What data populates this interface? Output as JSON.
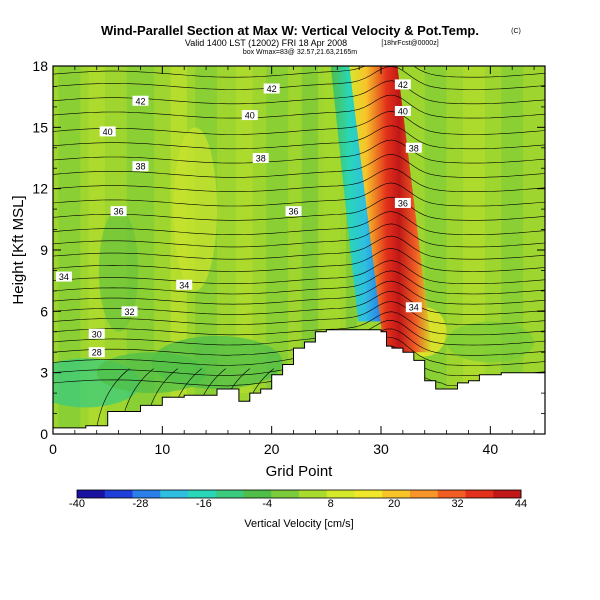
{
  "chart_data": {
    "type": "heatmap",
    "title": "Wind-Parallel Section at Max W: Vertical Velocity & Pot.Temp.",
    "title_suffix": "(C)",
    "subtitle": "Valid 1400 LST (12002) FRI 18 Apr 2008",
    "subtitle_suffix": "[18hrFcst@0000z]",
    "subtitle2": "box Wmax=83@ 32.57,21.63,2165m",
    "xlabel": "Grid Point",
    "ylabel": "Height [Kft MSL]",
    "xlim": [
      0,
      45
    ],
    "ylim": [
      0,
      18
    ],
    "x_ticks": [
      "0",
      "10",
      "20",
      "30",
      "40"
    ],
    "y_ticks": [
      "0",
      "3",
      "6",
      "9",
      "12",
      "15",
      "18"
    ],
    "colorbar": {
      "label": "Vertical Velocity [cm/s]",
      "range": [
        -40,
        44
      ],
      "tick_labels": [
        "-40",
        "-28",
        "-16",
        "-4",
        "8",
        "20",
        "32",
        "44"
      ],
      "colors": [
        "#1a12a0",
        "#1f3fd8",
        "#2a7fe8",
        "#2fbfe0",
        "#2ad6b8",
        "#3acb7e",
        "#4fbf4a",
        "#7acc3a",
        "#a8db2e",
        "#d4e82c",
        "#f2e82a",
        "#f8c42a",
        "#f7952a",
        "#f05e24",
        "#e2301c",
        "#c01818"
      ]
    },
    "features": {
      "terrain_left": [
        [
          0,
          0.3
        ],
        [
          3,
          0.4
        ],
        [
          5,
          1.1
        ],
        [
          8,
          1.4
        ],
        [
          10,
          1.8
        ],
        [
          12,
          1.9
        ],
        [
          15,
          2.2
        ],
        [
          17,
          1.6
        ],
        [
          18,
          2.0
        ],
        [
          19,
          2.2
        ],
        [
          20,
          2.9
        ],
        [
          21,
          3.4
        ],
        [
          22,
          4.2
        ],
        [
          23,
          4.5
        ],
        [
          24,
          5.0
        ],
        [
          25,
          5.1
        ],
        [
          26,
          5.1
        ],
        [
          28,
          5.1
        ],
        [
          29,
          5.1
        ],
        [
          30,
          5.0
        ],
        [
          30.5,
          4.3
        ],
        [
          31,
          4.2
        ],
        [
          32,
          4.0
        ],
        [
          33,
          3.6
        ],
        [
          34,
          2.6
        ],
        [
          35,
          2.2
        ],
        [
          36,
          2.2
        ],
        [
          37,
          2.5
        ],
        [
          38,
          2.6
        ],
        [
          39,
          2.9
        ],
        [
          41,
          3.0
        ],
        [
          45,
          3.0
        ]
      ],
      "blue_downdraft_core": {
        "x": 29.5,
        "y_range": [
          5.5,
          13
        ],
        "value": -28
      },
      "red_updraft_core": {
        "x": 32.5,
        "y_range": [
          4,
          17.5
        ],
        "value": 44
      }
    },
    "theta_contour_labels": [
      {
        "text": "42",
        "x": 8,
        "y": 16.3
      },
      {
        "text": "42",
        "x": 20,
        "y": 16.9
      },
      {
        "text": "42",
        "x": 32,
        "y": 17.1
      },
      {
        "text": "40",
        "x": 5,
        "y": 14.8
      },
      {
        "text": "40",
        "x": 18,
        "y": 15.6
      },
      {
        "text": "40",
        "x": 32,
        "y": 15.8
      },
      {
        "text": "38",
        "x": 8,
        "y": 13.1
      },
      {
        "text": "38",
        "x": 19,
        "y": 13.5
      },
      {
        "text": "38",
        "x": 33,
        "y": 14.0
      },
      {
        "text": "36",
        "x": 6,
        "y": 10.9
      },
      {
        "text": "36",
        "x": 22,
        "y": 10.9
      },
      {
        "text": "36",
        "x": 32,
        "y": 11.3
      },
      {
        "text": "34",
        "x": 1,
        "y": 7.7
      },
      {
        "text": "34",
        "x": 12,
        "y": 7.3
      },
      {
        "text": "32",
        "x": 7,
        "y": 6.0
      },
      {
        "text": "30",
        "x": 4,
        "y": 4.9
      },
      {
        "text": "28",
        "x": 4,
        "y": 4.0
      },
      {
        "text": "34",
        "x": 33,
        "y": 6.2
      }
    ]
  }
}
